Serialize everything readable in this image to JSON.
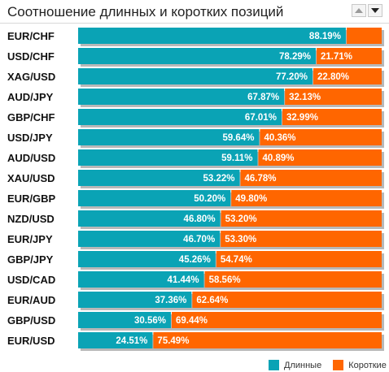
{
  "header": {
    "title": "Соотношение длинных и коротких позиций",
    "up_icon": "arrow-up-icon",
    "down_icon": "arrow-down-icon"
  },
  "colors": {
    "long": "#0aa3b5",
    "short": "#ff6600",
    "shadow": "#b8b8b8"
  },
  "chart_data": {
    "type": "bar",
    "orientation": "horizontal",
    "stacked": true,
    "percent_stacked": true,
    "categories": [
      "EUR/CHF",
      "USD/CHF",
      "XAG/USD",
      "AUD/JPY",
      "GBP/CHF",
      "USD/JPY",
      "AUD/USD",
      "XAU/USD",
      "EUR/GBP",
      "NZD/USD",
      "EUR/JPY",
      "GBP/JPY",
      "USD/CAD",
      "EUR/AUD",
      "GBP/USD",
      "EUR/USD"
    ],
    "series": [
      {
        "name": "Длинные",
        "values": [
          88.19,
          78.29,
          77.2,
          67.87,
          67.01,
          59.64,
          59.11,
          53.22,
          50.2,
          46.8,
          46.7,
          45.26,
          41.44,
          37.36,
          30.56,
          24.51
        ],
        "labels": [
          "88.19%",
          "78.29%",
          "77.20%",
          "67.87%",
          "67.01%",
          "59.64%",
          "59.11%",
          "53.22%",
          "50.20%",
          "46.80%",
          "46.70%",
          "45.26%",
          "41.44%",
          "37.36%",
          "30.56%",
          "24.51%"
        ]
      },
      {
        "name": "Короткие",
        "values": [
          11.81,
          21.71,
          22.8,
          32.13,
          32.99,
          40.36,
          40.89,
          46.78,
          49.8,
          53.2,
          53.3,
          54.74,
          58.56,
          62.64,
          69.44,
          75.49
        ],
        "labels": [
          "",
          "21.71%",
          "22.80%",
          "32.13%",
          "32.99%",
          "40.36%",
          "40.89%",
          "46.78%",
          "49.80%",
          "53.20%",
          "53.30%",
          "54.74%",
          "58.56%",
          "62.64%",
          "69.44%",
          "75.49%"
        ]
      }
    ],
    "xlim": [
      0,
      100
    ],
    "legend_position": "bottom-right",
    "grid": false
  },
  "legend": {
    "long_label": "Длинные",
    "short_label": "Короткие"
  }
}
